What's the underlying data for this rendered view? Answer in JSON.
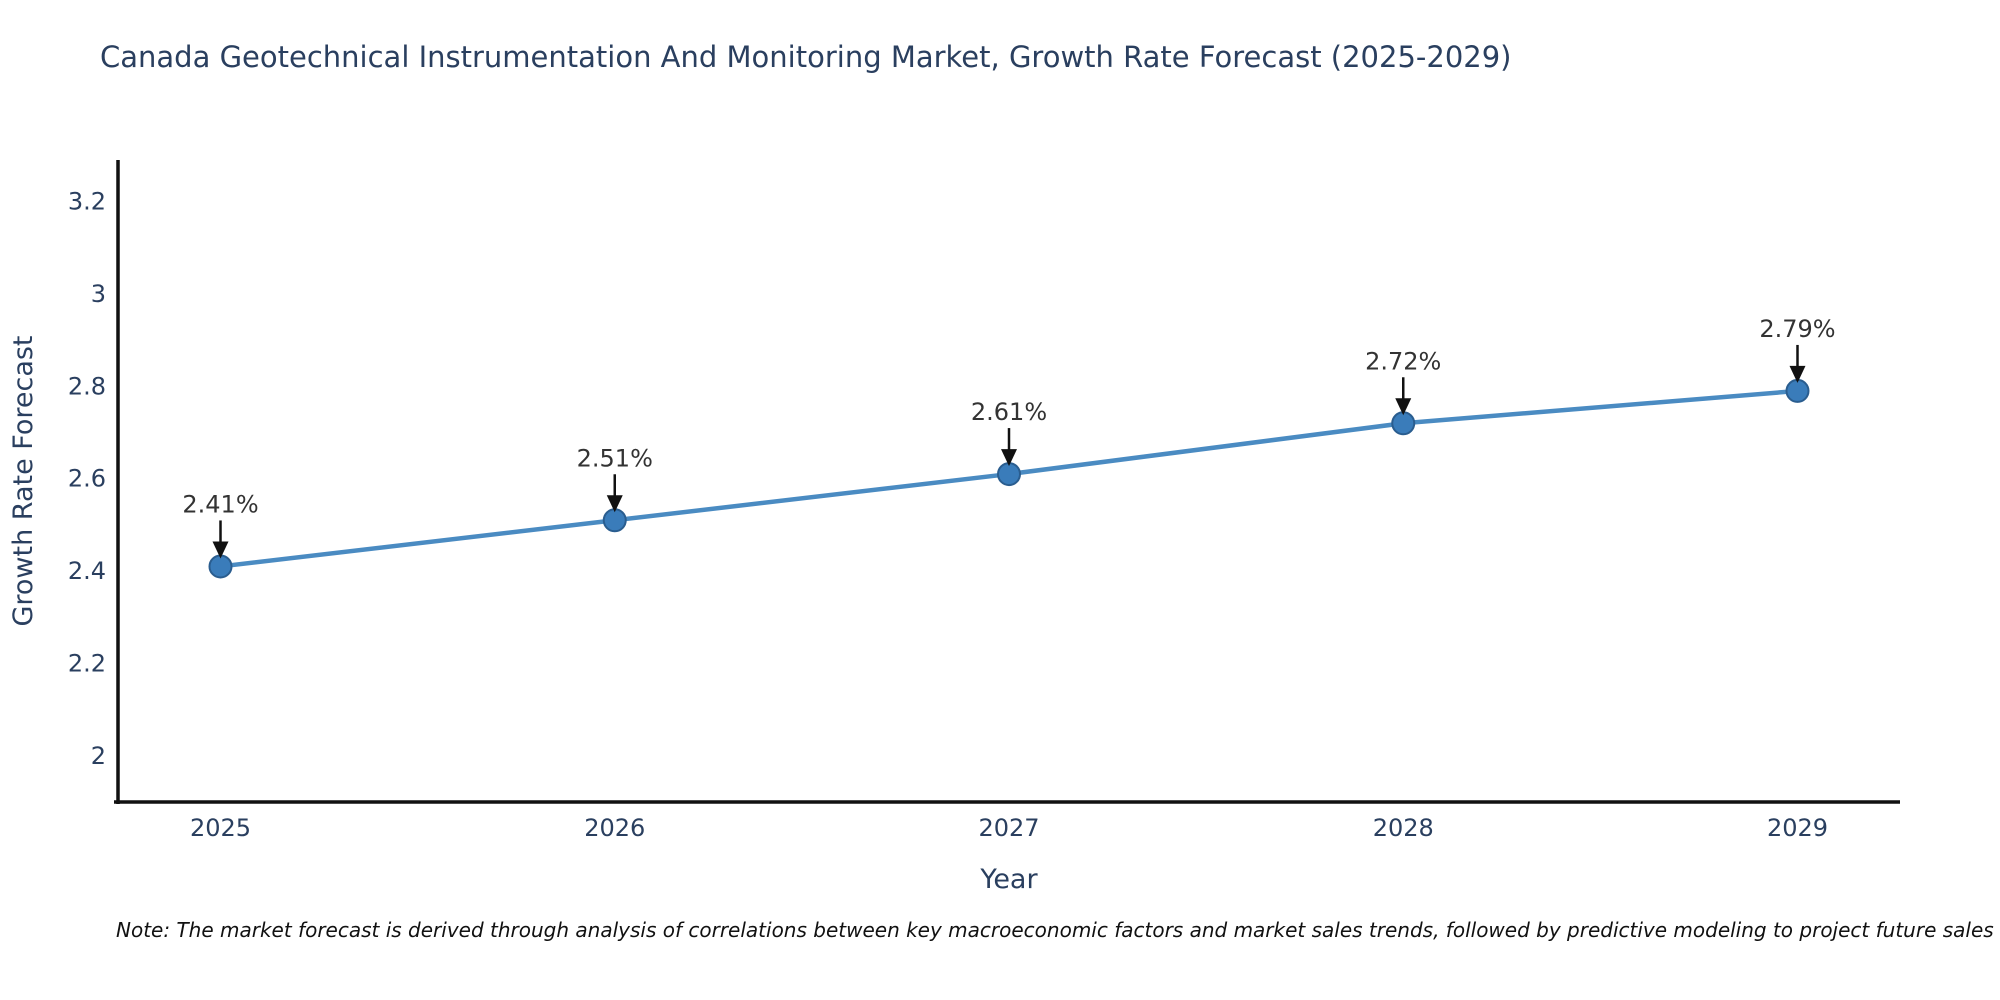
{
  "title": "Canada Geotechnical Instrumentation And Monitoring Market, Growth Rate Forecast (2025-2029)",
  "note": "Note: The market forecast is derived through analysis of correlations between key macroeconomic factors and market sales trends, followed by predictive modeling to project future sales",
  "chart_data": {
    "type": "line",
    "title": "Canada Geotechnical Instrumentation And Monitoring Market, Growth Rate Forecast (2025-2029)",
    "xlabel": "Year",
    "ylabel": "Growth Rate Forecast",
    "x": [
      2025,
      2026,
      2027,
      2028,
      2029
    ],
    "series": [
      {
        "name": "Growth Rate Forecast",
        "values": [
          2.41,
          2.51,
          2.61,
          2.72,
          2.79
        ]
      }
    ],
    "point_labels": [
      "2.41%",
      "2.51%",
      "2.61%",
      "2.72%",
      "2.79%"
    ],
    "xtick_labels": [
      "2025",
      "2026",
      "2027",
      "2028",
      "2029"
    ],
    "yticks": [
      2,
      2.2,
      2.4,
      2.6,
      2.8,
      3,
      3.2
    ],
    "ytick_labels": [
      "2",
      "2.2",
      "2.4",
      "2.6",
      "2.8",
      "3",
      "3.2"
    ],
    "xlim": [
      2024.74,
      2029.26
    ],
    "ylim": [
      1.9,
      3.29
    ],
    "grid": false,
    "legend": "none",
    "colors": {
      "line": "#4a8bc2",
      "marker_fill": "#3a7cba",
      "marker_edge": "#2a5d8f",
      "axis_line": "#111111",
      "tick_text": "#2a3f5f",
      "axis_title_text": "#2a3f5f",
      "annotation_text": "#333333",
      "annotation_arrow": "#111111",
      "title_text": "#2a3f5f"
    }
  }
}
